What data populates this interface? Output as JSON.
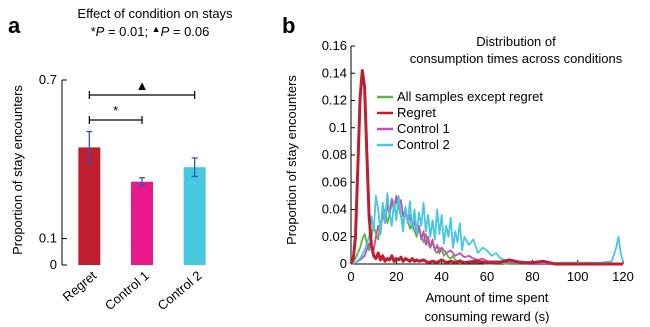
{
  "panels": {
    "a": {
      "letter": "a"
    },
    "b": {
      "letter": "b"
    }
  },
  "chart_data": [
    {
      "type": "bar",
      "title": "Effect of condition on stays",
      "subtitle_parts": {
        "star_mark": "*",
        "p_italic": "P",
        "star_value": " = 0.01; ",
        "triangle_mark": "▲",
        "triangle_value": " = 0.06"
      },
      "ylabel": "Proportion of stay encounters",
      "xlabel": "",
      "categories": [
        "Regret",
        "Control 1",
        "Control 2"
      ],
      "values": [
        0.445,
        0.315,
        0.37
      ],
      "errors": [
        0.06,
        0.015,
        0.035
      ],
      "colors": [
        "#bf1e2e",
        "#e8178a",
        "#45c8e0"
      ],
      "error_color": "#2d58b5",
      "ylim": [
        0,
        0.7
      ],
      "yticks": [
        {
          "value": 0,
          "label": "0"
        },
        {
          "value": 0.1,
          "label": "0.1"
        },
        {
          "value": 0.7,
          "label": "0.7"
        }
      ],
      "significance": [
        {
          "from": "Regret",
          "to": "Control 1",
          "label": "*"
        },
        {
          "from": "Regret",
          "to": "Control 2",
          "label": "▲"
        }
      ]
    },
    {
      "type": "line",
      "title": "Distribution of",
      "title_line2": "consumption times across conditions",
      "ylabel": "Proportion of stay encounters",
      "xlabel": "Amount of time spent",
      "xlabel_line2": "consuming reward (s)",
      "xlim": [
        0,
        120
      ],
      "ylim": [
        0,
        0.16
      ],
      "xticks": [
        0,
        20,
        40,
        60,
        80,
        100,
        120
      ],
      "yticks": [
        0,
        0.02,
        0.04,
        0.06,
        0.08,
        0.1,
        0.12,
        0.14,
        0.16
      ],
      "legend_position": "upper-middle",
      "series": [
        {
          "name": "All samples except regret",
          "color": "#5ab945",
          "x": [
            0,
            1,
            2,
            3,
            4,
            5,
            6,
            7,
            8,
            9,
            10,
            11,
            12,
            13,
            14,
            15,
            16,
            17,
            18,
            19,
            20,
            21,
            22,
            23,
            24,
            25,
            26,
            27,
            28,
            29,
            30,
            31,
            32,
            33,
            34,
            35,
            36,
            37,
            38,
            39,
            40,
            41,
            42,
            43,
            44,
            45,
            46,
            47,
            48,
            49,
            50,
            52,
            54,
            56,
            58,
            60,
            65,
            70,
            80,
            90,
            100,
            110,
            120
          ],
          "y": [
            0,
            0.002,
            0.004,
            0.008,
            0.012,
            0.018,
            0.022,
            0.015,
            0.01,
            0.02,
            0.028,
            0.022,
            0.018,
            0.03,
            0.035,
            0.04,
            0.03,
            0.036,
            0.045,
            0.04,
            0.047,
            0.042,
            0.035,
            0.03,
            0.038,
            0.033,
            0.026,
            0.03,
            0.024,
            0.02,
            0.026,
            0.02,
            0.016,
            0.022,
            0.015,
            0.012,
            0.016,
            0.01,
            0.008,
            0.012,
            0.01,
            0.006,
            0.008,
            0.005,
            0.004,
            0.006,
            0.003,
            0.002,
            0.003,
            0.002,
            0.001,
            0.002,
            0.001,
            0.001,
            0.001,
            0,
            0.001,
            0,
            0,
            0,
            0,
            0,
            0
          ]
        },
        {
          "name": "Regret",
          "color": "#bf1e2e",
          "x": [
            0,
            1,
            2,
            3,
            4,
            5,
            6,
            7,
            8,
            9,
            10,
            11,
            12,
            13,
            14,
            15,
            16,
            17,
            18,
            19,
            20,
            21,
            22,
            23,
            24,
            25,
            26,
            27,
            28,
            29,
            30,
            32,
            34,
            36,
            38,
            40,
            42,
            44,
            46,
            48,
            50,
            55,
            60,
            65,
            70,
            75,
            80,
            85,
            90,
            100,
            110,
            120
          ],
          "y": [
            0,
            0.004,
            0.02,
            0.07,
            0.122,
            0.142,
            0.13,
            0.08,
            0.035,
            0.014,
            0.006,
            0.004,
            0.008,
            0.003,
            0.006,
            0.002,
            0.004,
            0.003,
            0.006,
            0.002,
            0.004,
            0.003,
            0.005,
            0.002,
            0.004,
            0.003,
            0.002,
            0.004,
            0.002,
            0.003,
            0.002,
            0.003,
            0.001,
            0.002,
            0.001,
            0.003,
            0.001,
            0.002,
            0.001,
            0.002,
            0.001,
            0.002,
            0.001,
            0.001,
            0.003,
            0.001,
            0.001,
            0.002,
            0,
            0,
            0,
            0
          ]
        },
        {
          "name": "Control 1",
          "color": "#c24fb7",
          "x": [
            0,
            2,
            4,
            6,
            8,
            10,
            11,
            12,
            13,
            14,
            15,
            16,
            17,
            18,
            19,
            20,
            21,
            22,
            23,
            24,
            25,
            26,
            27,
            28,
            29,
            30,
            31,
            32,
            33,
            34,
            35,
            36,
            37,
            38,
            39,
            40,
            42,
            44,
            46,
            48,
            50,
            52,
            54,
            56,
            58,
            60,
            65,
            70,
            80,
            90,
            100,
            110,
            120
          ],
          "y": [
            0,
            0.001,
            0.003,
            0.006,
            0.015,
            0.01,
            0.02,
            0.028,
            0.022,
            0.038,
            0.03,
            0.044,
            0.036,
            0.048,
            0.04,
            0.05,
            0.042,
            0.047,
            0.035,
            0.04,
            0.03,
            0.036,
            0.026,
            0.032,
            0.022,
            0.028,
            0.018,
            0.024,
            0.014,
            0.02,
            0.012,
            0.018,
            0.01,
            0.014,
            0.008,
            0.012,
            0.008,
            0.01,
            0.006,
            0.008,
            0.005,
            0.006,
            0.004,
            0.003,
            0.004,
            0.002,
            0.002,
            0.001,
            0,
            0,
            0,
            0,
            0
          ]
        },
        {
          "name": "Control 2",
          "color": "#45c8e0",
          "x": [
            0,
            2,
            4,
            6,
            8,
            9,
            10,
            11,
            12,
            13,
            14,
            15,
            16,
            17,
            18,
            19,
            20,
            21,
            22,
            23,
            24,
            25,
            26,
            27,
            28,
            29,
            30,
            31,
            32,
            33,
            34,
            35,
            36,
            37,
            38,
            39,
            40,
            41,
            42,
            43,
            44,
            45,
            46,
            47,
            48,
            49,
            50,
            52,
            54,
            56,
            58,
            60,
            62,
            64,
            66,
            70,
            75,
            80,
            85,
            90,
            100,
            110,
            115,
            117,
            118,
            119,
            120
          ],
          "y": [
            0,
            0.001,
            0.004,
            0.01,
            0.02,
            0.035,
            0.025,
            0.05,
            0.04,
            0.022,
            0.045,
            0.03,
            0.052,
            0.038,
            0.028,
            0.046,
            0.032,
            0.05,
            0.036,
            0.024,
            0.042,
            0.03,
            0.046,
            0.026,
            0.04,
            0.022,
            0.038,
            0.028,
            0.045,
            0.024,
            0.036,
            0.02,
            0.032,
            0.018,
            0.04,
            0.022,
            0.036,
            0.015,
            0.028,
            0.02,
            0.034,
            0.012,
            0.024,
            0.016,
            0.03,
            0.01,
            0.02,
            0.014,
            0.018,
            0.008,
            0.012,
            0.01,
            0.006,
            0.008,
            0.004,
            0.002,
            0.002,
            0.001,
            0.001,
            0.001,
            0.001,
            0.001,
            0.002,
            0.012,
            0.02,
            0.008,
            0.002
          ]
        }
      ]
    }
  ]
}
